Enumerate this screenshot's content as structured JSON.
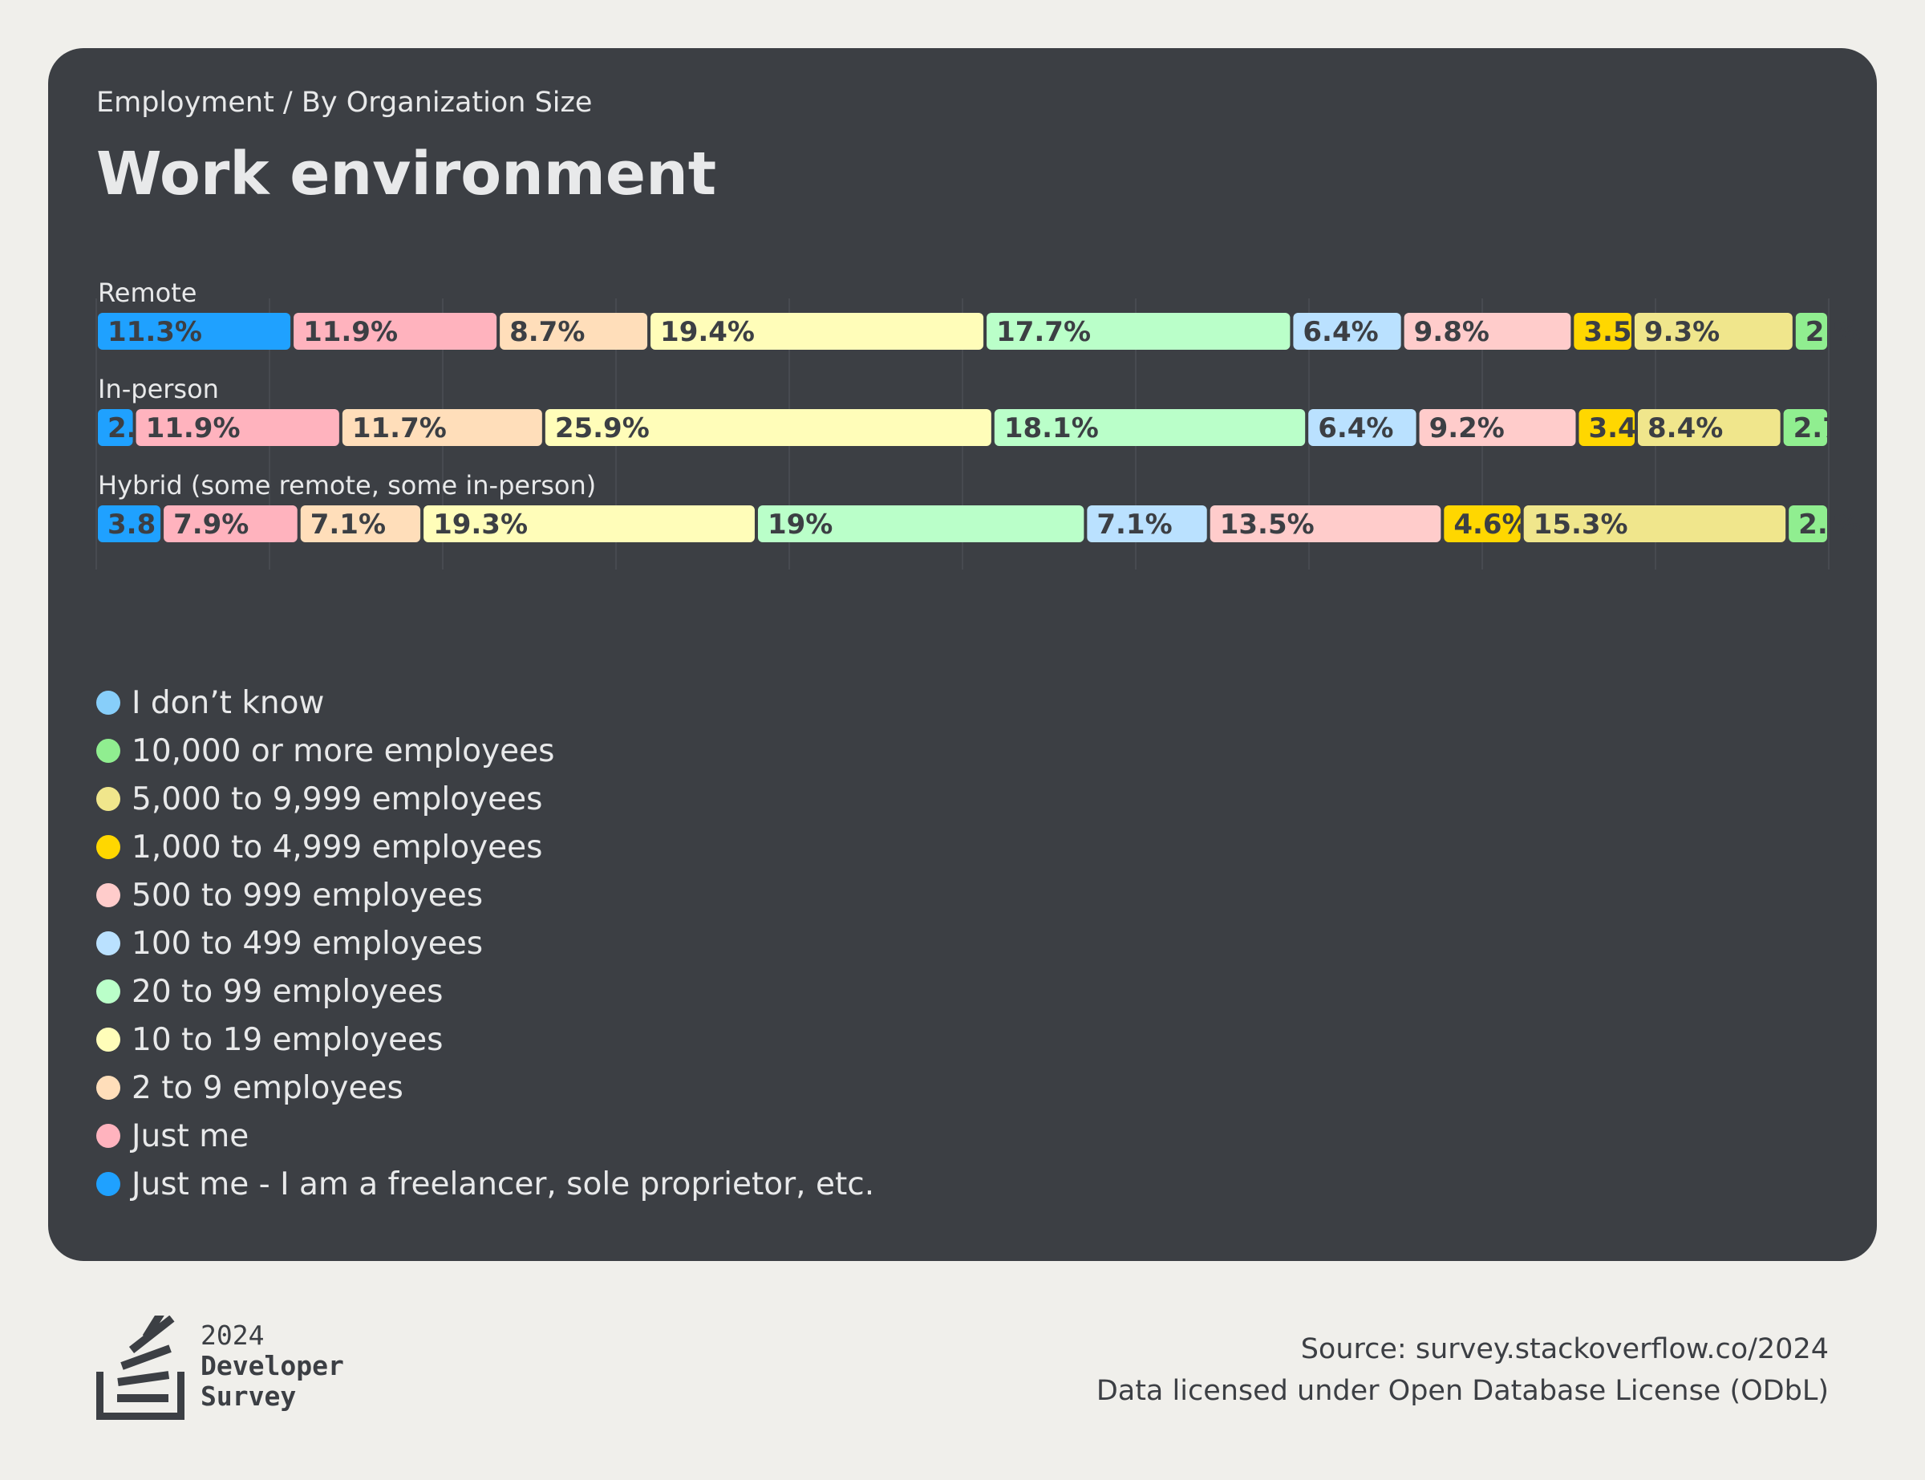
{
  "header": {
    "subtitle": "Employment / By Organization Size",
    "title": "Work environment"
  },
  "chart_data": {
    "type": "bar",
    "orientation": "horizontal",
    "stacked": "percent",
    "categories": [
      "Remote",
      "In-person",
      "Hybrid (some remote, some in-person)"
    ],
    "series": [
      {
        "name": "Just me - I am a freelancer, sole proprietor, etc.",
        "color": "#1fa1ff",
        "values": [
          11.3,
          2.2,
          3.8
        ],
        "labels": [
          "11.3%",
          "2.",
          "3.8"
        ]
      },
      {
        "name": "Just me",
        "color": "#ffb3be",
        "values": [
          11.9,
          11.9,
          7.9
        ],
        "labels": [
          "11.9%",
          "11.9%",
          "7.9%"
        ]
      },
      {
        "name": "2 to 9 employees",
        "color": "#ffdeba",
        "values": [
          8.7,
          11.7,
          7.1
        ],
        "labels": [
          "8.7%",
          "11.7%",
          "7.1%"
        ]
      },
      {
        "name": "10 to 19 employees",
        "color": "#fffdb9",
        "values": [
          19.4,
          25.9,
          19.3
        ],
        "labels": [
          "19.4%",
          "25.9%",
          "19.3%"
        ]
      },
      {
        "name": "20 to 99 employees",
        "color": "#baffc9",
        "values": [
          17.7,
          18.1,
          19
        ],
        "labels": [
          "17.7%",
          "18.1%",
          "19%"
        ]
      },
      {
        "name": "100 to 499 employees",
        "color": "#bae1ff",
        "values": [
          6.4,
          6.4,
          7.1
        ],
        "labels": [
          "6.4%",
          "6.4%",
          "7.1%"
        ]
      },
      {
        "name": "500 to 999 employees",
        "color": "#ffcccb",
        "values": [
          9.8,
          9.2,
          13.5
        ],
        "labels": [
          "9.8%",
          "9.2%",
          "13.5%"
        ]
      },
      {
        "name": "1,000 to 4,999 employees",
        "color": "#ffd700",
        "values": [
          3.5,
          3.4,
          4.6
        ],
        "labels": [
          "3.5",
          "3.4",
          "4.6%"
        ]
      },
      {
        "name": "5,000 to 9,999 employees",
        "color": "#f0e68c",
        "values": [
          9.3,
          8.4,
          15.3
        ],
        "labels": [
          "9.3%",
          "8.4%",
          "15.3%"
        ]
      },
      {
        "name": "10,000 or more employees",
        "color": "#90ee90",
        "values": [
          2.0,
          2.7,
          2.4
        ],
        "labels": [
          "2.",
          "2.7",
          "2."
        ]
      },
      {
        "name": "I don’t know",
        "color": "#87cefa",
        "values": [
          0,
          0,
          0
        ],
        "labels": [
          "",
          "",
          ""
        ]
      }
    ],
    "overflow_labels": [
      "%",
      "",
      "%"
    ],
    "xlim": [
      0,
      100
    ],
    "grid": true,
    "legend_placement": "bottom-left"
  },
  "legend": {
    "items": [
      {
        "label": "I don’t know",
        "color": "#87cefa"
      },
      {
        "label": "10,000 or more employees",
        "color": "#90ee90"
      },
      {
        "label": "5,000 to 9,999 employees",
        "color": "#f0e68c"
      },
      {
        "label": "1,000 to 4,999 employees",
        "color": "#ffd700"
      },
      {
        "label": "500 to 999 employees",
        "color": "#ffcccb"
      },
      {
        "label": "100 to 499 employees",
        "color": "#bae1ff"
      },
      {
        "label": "20 to 99 employees",
        "color": "#baffc9"
      },
      {
        "label": "10 to 19 employees",
        "color": "#fffdb9"
      },
      {
        "label": "2 to 9 employees",
        "color": "#ffdeba"
      },
      {
        "label": "Just me",
        "color": "#ffb3be"
      },
      {
        "label": "Just me - I am a freelancer, sole proprietor, etc.",
        "color": "#1fa1ff"
      }
    ]
  },
  "footer": {
    "logo_year": "2024",
    "logo_line1": "Developer",
    "logo_line2": "Survey",
    "source": "Source: survey.stackoverflow.co/2024",
    "license": "Data licensed under Open Database License (ODbL)"
  }
}
